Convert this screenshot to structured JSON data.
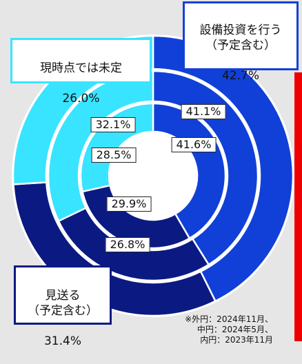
{
  "chart_data": {
    "type": "nested-donut",
    "categories": [
      "設備投資を行う\n（予定含む）",
      "見送る\n（予定含む）",
      "現時点では未定"
    ],
    "colors": [
      "#1140d8",
      "#0b1a82",
      "#38e4ff"
    ],
    "series": [
      {
        "values": [
          42.7,
          31.4,
          26.0
        ],
        "value_labels": [
          "42.7%",
          "31.4%",
          "26.0%"
        ]
      },
      {
        "values": [
          41.1,
          26.8,
          32.1
        ],
        "value_labels": [
          "41.1%",
          "26.8%",
          "32.1%"
        ]
      },
      {
        "values": [
          41.6,
          29.9,
          28.5
        ],
        "value_labels": [
          "41.6%",
          "29.9%",
          "28.5%"
        ]
      }
    ],
    "note": [
      "※外円：2024年11月、",
      "中円：2024年5月、",
      "内円：2023年11月"
    ]
  }
}
